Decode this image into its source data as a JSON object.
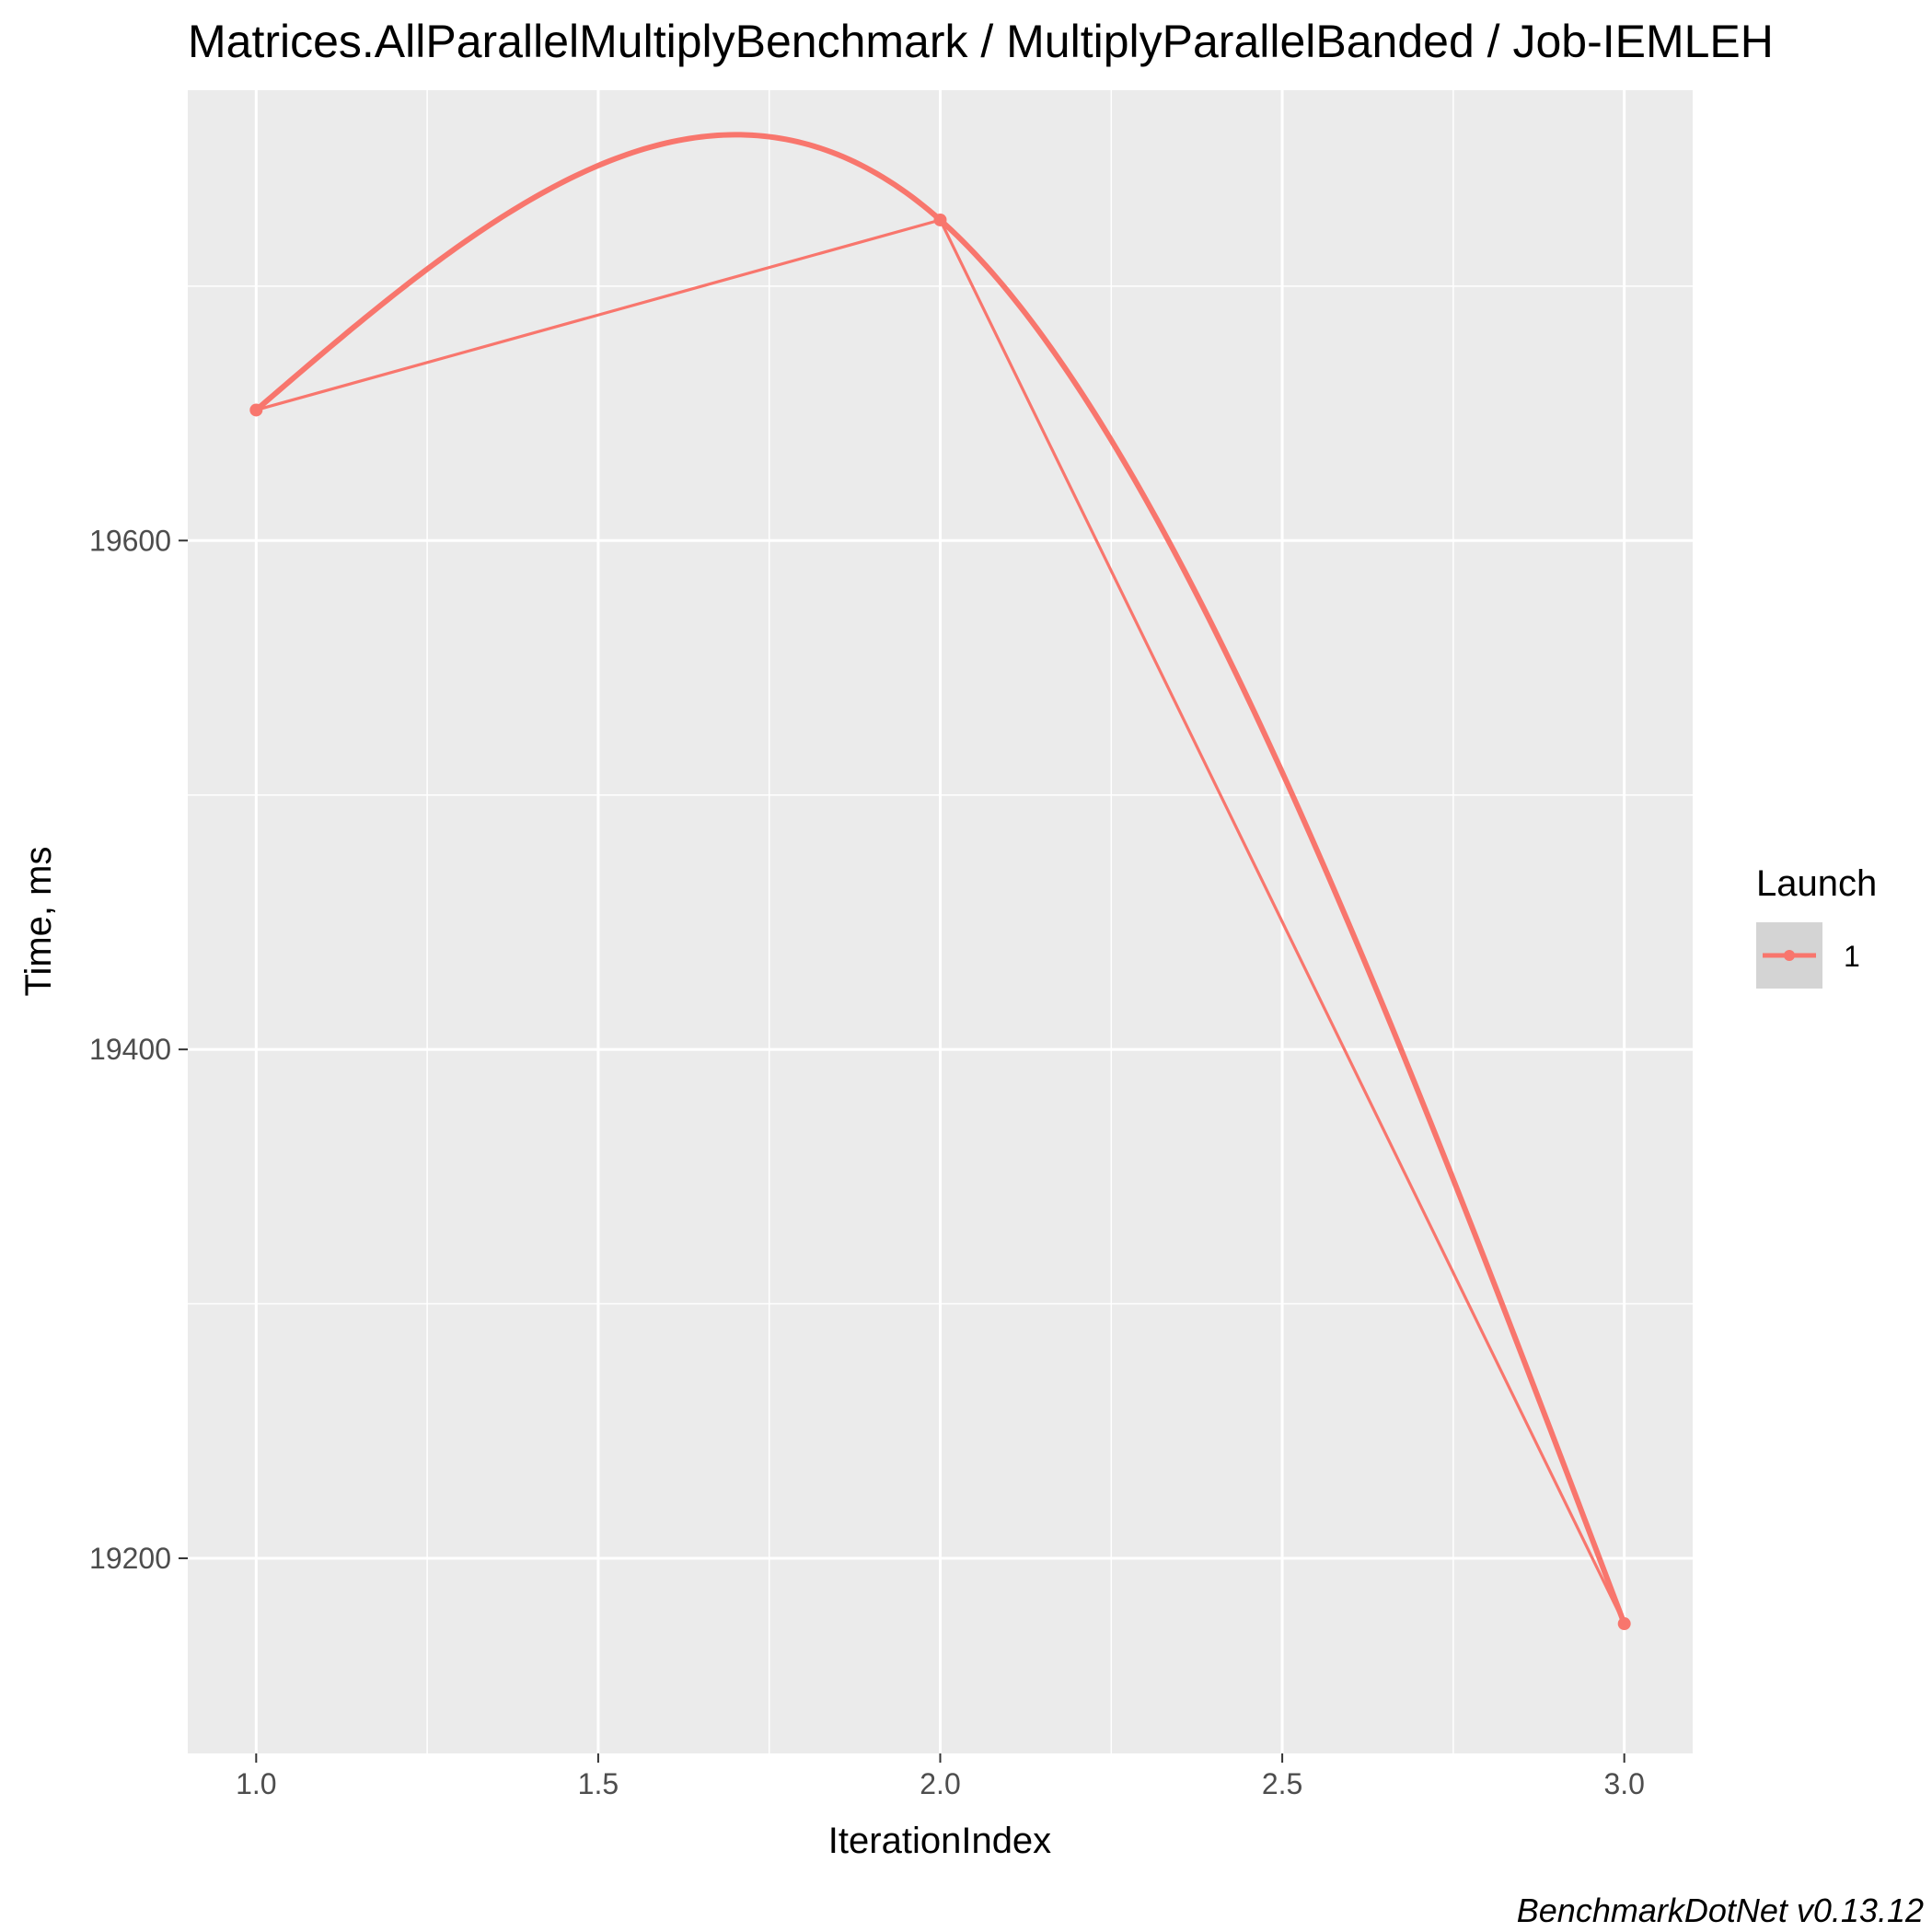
{
  "chart_data": {
    "type": "line",
    "title": "Matrices.AllParallelMultiplyBenchmark / MultiplyParallelBanded / Job-IEMLEH",
    "xlabel": "IterationIndex",
    "ylabel": "Time, ms",
    "x": [
      1,
      2,
      3
    ],
    "series": [
      {
        "name": "1",
        "values": [
          19651.3,
          19726.0,
          19174.3
        ]
      }
    ],
    "smoothed": true,
    "xlim": [
      0.9,
      3.1
    ],
    "ylim": [
      19123.3,
      19777.0
    ],
    "x_ticks": [
      "1.0",
      "1.5",
      "2.0",
      "2.5",
      "3.0"
    ],
    "x_tick_values": [
      1.0,
      1.5,
      2.0,
      2.5,
      3.0
    ],
    "y_ticks": [
      "19200",
      "19400",
      "19600"
    ],
    "y_tick_values": [
      19200,
      19400,
      19600
    ],
    "y_minor_values": [
      19300,
      19500,
      19700
    ],
    "x_minor_values": [
      1.25,
      1.75,
      2.25,
      2.75
    ],
    "grid": true,
    "legend": {
      "title": "Launch",
      "placement": "right"
    },
    "caption": "BenchmarkDotNet v0.13.12",
    "colors": {
      "series": "#F8766D",
      "panel": "#EBEBEB",
      "grid": "#FFFFFF"
    }
  }
}
